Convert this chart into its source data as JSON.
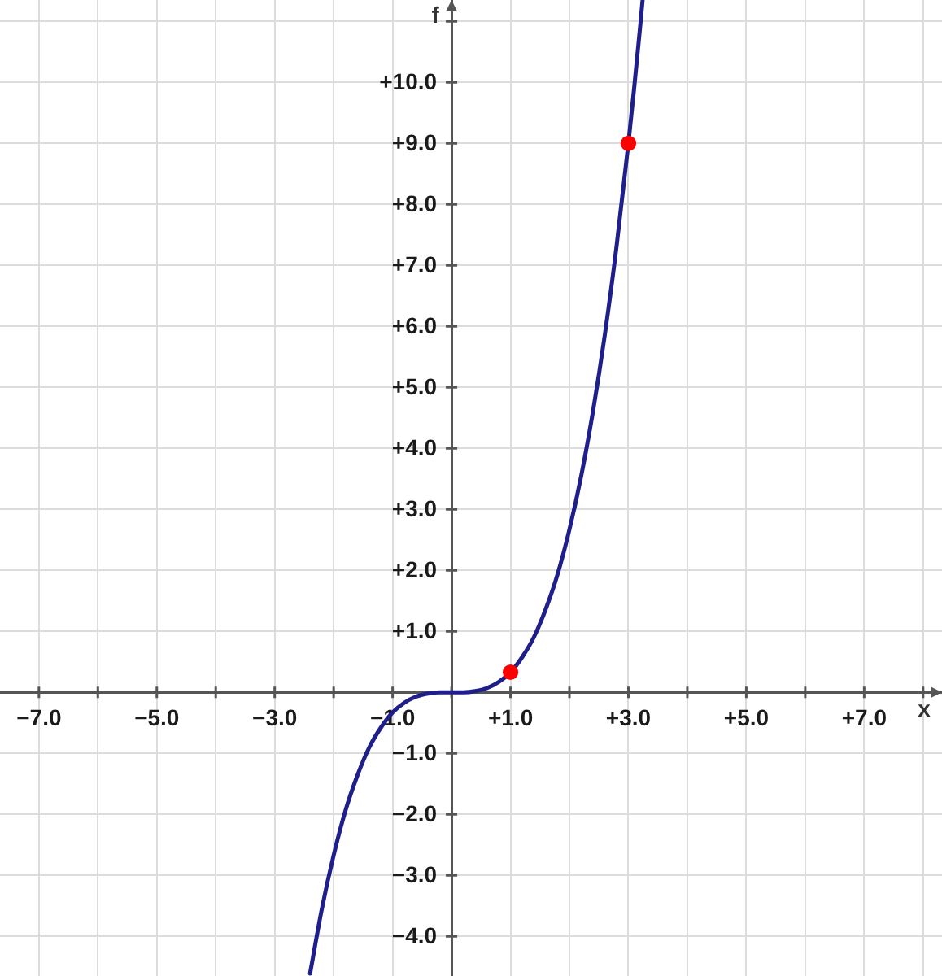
{
  "chart_data": {
    "type": "line",
    "xlabel": "x",
    "ylabel": "f",
    "xlim": [
      -7.66,
      8.32
    ],
    "ylim": [
      -4.65,
      11.35
    ],
    "xticks": [
      {
        "value": -7,
        "label": "−7.0"
      },
      {
        "value": -6,
        "label": null
      },
      {
        "value": -5,
        "label": "−5.0"
      },
      {
        "value": -4,
        "label": null
      },
      {
        "value": -3,
        "label": "−3.0"
      },
      {
        "value": -2,
        "label": null
      },
      {
        "value": -1,
        "label": "−1.0"
      },
      {
        "value": 0,
        "label": null
      },
      {
        "value": 1,
        "label": "+1.0"
      },
      {
        "value": 2,
        "label": null
      },
      {
        "value": 3,
        "label": "+3.0"
      },
      {
        "value": 4,
        "label": null
      },
      {
        "value": 5,
        "label": "+5.0"
      },
      {
        "value": 6,
        "label": null
      },
      {
        "value": 7,
        "label": "+7.0"
      },
      {
        "value": 8,
        "label": null
      }
    ],
    "yticks": [
      {
        "value": -4,
        "label": "−4.0"
      },
      {
        "value": -3,
        "label": "−3.0"
      },
      {
        "value": -2,
        "label": "−2.0"
      },
      {
        "value": -1,
        "label": "−1.0"
      },
      {
        "value": 0,
        "label": null
      },
      {
        "value": 1,
        "label": "+1.0"
      },
      {
        "value": 2,
        "label": "+2.0"
      },
      {
        "value": 3,
        "label": "+3.0"
      },
      {
        "value": 4,
        "label": "+4.0"
      },
      {
        "value": 5,
        "label": "+5.0"
      },
      {
        "value": 6,
        "label": "+6.0"
      },
      {
        "value": 7,
        "label": "+7.0"
      },
      {
        "value": 8,
        "label": "+8.0"
      },
      {
        "value": 9,
        "label": "+9.0"
      },
      {
        "value": 10,
        "label": "+10.0"
      },
      {
        "value": 11,
        "label": null
      }
    ],
    "grid": true,
    "series": [
      {
        "color": "#1f1f8c",
        "marker": "none",
        "x": [
          -2.4,
          -2.2,
          -2.0,
          -1.8,
          -1.6,
          -1.4,
          -1.2,
          -1.0,
          -0.8,
          -0.6,
          -0.4,
          -0.2,
          0,
          0.2,
          0.4,
          0.6,
          0.8,
          1.0,
          1.2,
          1.4,
          1.6,
          1.8,
          2.0,
          2.2,
          2.4,
          2.6,
          2.8,
          3.0,
          3.1,
          3.2,
          3.24
        ],
        "values": [
          -4.61,
          -3.55,
          -2.67,
          -1.94,
          -1.37,
          -0.91,
          -0.58,
          -0.33,
          -0.17,
          -0.07,
          -0.02,
          0,
          0,
          0,
          0.02,
          0.07,
          0.17,
          0.33,
          0.58,
          0.91,
          1.37,
          1.94,
          2.67,
          3.55,
          4.61,
          5.86,
          7.32,
          9.0,
          9.93,
          10.92,
          11.34
        ]
      },
      {
        "type": "scatter",
        "color": "#ff0000",
        "marker": "circle",
        "x": [
          1,
          3
        ],
        "values": [
          0.33,
          9
        ]
      }
    ]
  }
}
